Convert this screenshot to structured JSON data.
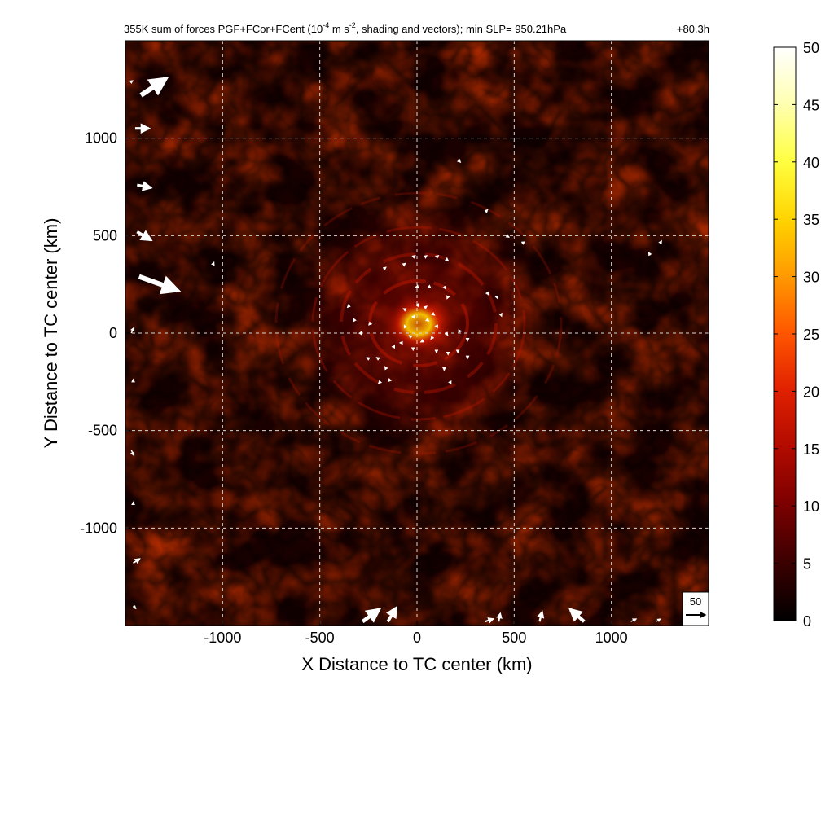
{
  "chart_data": {
    "type": "heatmap",
    "title": "355K sum of forces PGF+FCor+FCent (10",
    "title_exp": "-4",
    "title_mid": " m s",
    "title_exp2": "-2",
    "title_tail": ", shading and vectors); min SLP= 950.21hPa",
    "time_label": "+80.3h",
    "xlabel": "X Distance to TC center (km)",
    "ylabel": "Y Distance to TC center (km)",
    "xlim": [
      -1500,
      1500
    ],
    "ylim": [
      -1500,
      1500
    ],
    "x_ticks": [
      -1000,
      -500,
      0,
      500,
      1000
    ],
    "y_ticks": [
      -1000,
      -500,
      0,
      500,
      1000
    ],
    "grid": true,
    "colorbar": {
      "min": 0,
      "max": 50,
      "ticks": [
        0,
        5,
        10,
        15,
        20,
        25,
        30,
        35,
        40,
        45,
        50
      ],
      "colormap": [
        "#000000",
        "#3a0000",
        "#7a0000",
        "#b00a00",
        "#e02000",
        "#ff5500",
        "#ff9900",
        "#ffd400",
        "#ffff40",
        "#ffffb0",
        "#ffffff"
      ]
    },
    "reference_vector": {
      "label": "50",
      "magnitude": 50
    },
    "field_description_values": {
      "background_level": 5,
      "ring_peak_level": 14,
      "core_peak_level": 35
    },
    "vectors": [
      {
        "x": -1420,
        "y": 1220,
        "u": 45,
        "v": 30
      },
      {
        "x": -1450,
        "y": 1050,
        "u": 25,
        "v": 0
      },
      {
        "x": -1440,
        "y": 760,
        "u": 25,
        "v": -5
      },
      {
        "x": -1440,
        "y": 520,
        "u": 25,
        "v": -15
      },
      {
        "x": -1430,
        "y": 290,
        "u": 70,
        "v": -25
      },
      {
        "x": -1470,
        "y": 0,
        "u": 5,
        "v": 10
      },
      {
        "x": -1470,
        "y": -600,
        "u": 5,
        "v": -10
      },
      {
        "x": -1460,
        "y": -1180,
        "u": 12,
        "v": 8
      },
      {
        "x": -1460,
        "y": -1400,
        "u": 5,
        "v": -5
      },
      {
        "x": -280,
        "y": -1480,
        "u": 30,
        "v": 22
      },
      {
        "x": -150,
        "y": -1480,
        "u": 15,
        "v": 25
      },
      {
        "x": 350,
        "y": -1480,
        "u": 15,
        "v": 5
      },
      {
        "x": 420,
        "y": -1480,
        "u": 3,
        "v": 15
      },
      {
        "x": 630,
        "y": -1480,
        "u": 5,
        "v": 18
      },
      {
        "x": 860,
        "y": -1480,
        "u": -25,
        "v": 22
      },
      {
        "x": 1100,
        "y": -1480,
        "u": 10,
        "v": 5
      },
      {
        "x": 1230,
        "y": -1480,
        "u": 8,
        "v": 5
      },
      {
        "x": 210,
        "y": 890,
        "u": 5,
        "v": -5
      },
      {
        "x": 350,
        "y": 620,
        "u": 5,
        "v": 5
      },
      {
        "x": 460,
        "y": 500,
        "u": 5,
        "v": -3
      },
      {
        "x": 540,
        "y": 460,
        "u": 5,
        "v": 3
      },
      {
        "x": 1250,
        "y": 460,
        "u": 3,
        "v": 5
      },
      {
        "x": 1200,
        "y": 400,
        "u": -3,
        "v": 5
      },
      {
        "x": -1050,
        "y": 350,
        "u": 2,
        "v": 5
      },
      {
        "x": -20,
        "y": 390,
        "u": 4,
        "v": 3
      },
      {
        "x": 40,
        "y": 390,
        "u": 4,
        "v": 3
      },
      {
        "x": 100,
        "y": 390,
        "u": 4,
        "v": 3
      },
      {
        "x": 150,
        "y": 380,
        "u": 4,
        "v": -3
      },
      {
        "x": -170,
        "y": 330,
        "u": 4,
        "v": 3
      },
      {
        "x": -70,
        "y": 350,
        "u": 4,
        "v": 3
      },
      {
        "x": 0,
        "y": 240,
        "u": 3,
        "v": -3
      },
      {
        "x": 60,
        "y": 240,
        "u": 4,
        "v": -3
      },
      {
        "x": 140,
        "y": 240,
        "u": 3,
        "v": -5
      },
      {
        "x": 160,
        "y": 190,
        "u": -2,
        "v": -5
      },
      {
        "x": 360,
        "y": 210,
        "u": 3,
        "v": -5
      },
      {
        "x": 410,
        "y": 190,
        "u": 2,
        "v": -5
      },
      {
        "x": 430,
        "y": 100,
        "u": 2,
        "v": -5
      },
      {
        "x": -350,
        "y": 140,
        "u": -3,
        "v": -3
      },
      {
        "x": -320,
        "y": 70,
        "u": -3,
        "v": -4
      },
      {
        "x": -290,
        "y": 0,
        "u": 2,
        "v": -3
      },
      {
        "x": -240,
        "y": 50,
        "u": -3,
        "v": -3
      },
      {
        "x": -60,
        "y": 120,
        "u": -4,
        "v": 2
      },
      {
        "x": 0,
        "y": 140,
        "u": 3,
        "v": 4
      },
      {
        "x": 40,
        "y": 130,
        "u": 4,
        "v": 3
      },
      {
        "x": 80,
        "y": 100,
        "u": 4,
        "v": -3
      },
      {
        "x": 100,
        "y": 40,
        "u": 2,
        "v": -5
      },
      {
        "x": 80,
        "y": -20,
        "u": -3,
        "v": -4
      },
      {
        "x": 30,
        "y": -40,
        "u": -4,
        "v": -2
      },
      {
        "x": -30,
        "y": -20,
        "u": -4,
        "v": 3
      },
      {
        "x": -60,
        "y": 30,
        "u": -2,
        "v": 4
      },
      {
        "x": -20,
        "y": 80,
        "u": 3,
        "v": 4
      },
      {
        "x": 50,
        "y": 70,
        "u": 4,
        "v": -3
      },
      {
        "x": 150,
        "y": 0,
        "u": 3,
        "v": -4
      },
      {
        "x": 220,
        "y": 10,
        "u": 3,
        "v": 0
      },
      {
        "x": 260,
        "y": -30,
        "u": 0,
        "v": -4
      },
      {
        "x": 210,
        "y": -90,
        "u": 0,
        "v": -4
      },
      {
        "x": 160,
        "y": -100,
        "u": 0,
        "v": -4
      },
      {
        "x": -80,
        "y": -50,
        "u": -3,
        "v": 0
      },
      {
        "x": -120,
        "y": -70,
        "u": -3,
        "v": 0
      },
      {
        "x": -20,
        "y": -80,
        "u": 0,
        "v": -3
      },
      {
        "x": 100,
        "y": -90,
        "u": 0,
        "v": -4
      },
      {
        "x": -250,
        "y": -130,
        "u": -3,
        "v": 2
      },
      {
        "x": -200,
        "y": -130,
        "u": -3,
        "v": 2
      },
      {
        "x": -160,
        "y": -180,
        "u": -2,
        "v": 3
      },
      {
        "x": -140,
        "y": -240,
        "u": -3,
        "v": -3
      },
      {
        "x": -190,
        "y": -250,
        "u": -3,
        "v": -3
      },
      {
        "x": 140,
        "y": -180,
        "u": 0,
        "v": -4
      },
      {
        "x": 170,
        "y": -250,
        "u": 2,
        "v": -4
      },
      {
        "x": 260,
        "y": -120,
        "u": 0,
        "v": -4
      },
      {
        "x": -1470,
        "y": 1290,
        "u": 3,
        "v": 2
      },
      {
        "x": -1460,
        "y": -250,
        "u": 0,
        "v": 5
      },
      {
        "x": -1460,
        "y": -880,
        "u": 0,
        "v": 5
      }
    ]
  }
}
